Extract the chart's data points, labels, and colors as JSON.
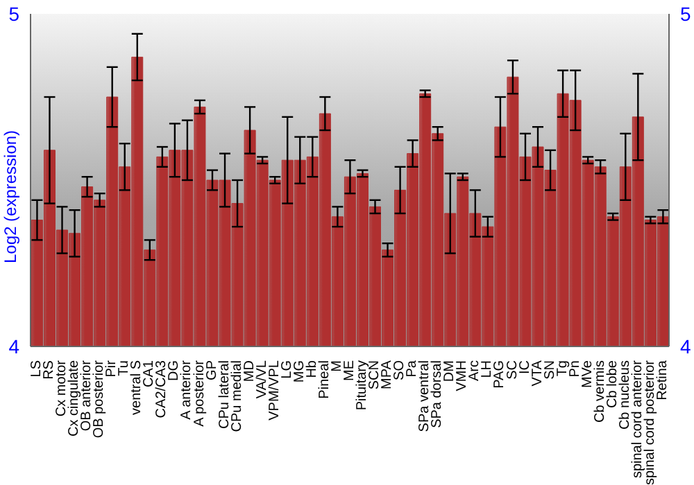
{
  "chart_data": {
    "type": "bar",
    "ylabel": "Log2 (expression)",
    "categories": [
      "LS",
      "RS",
      "Cx motor",
      "Cx cingulate",
      "OB anterior",
      "OB posterior",
      "Pir",
      "Tu",
      "ventral S",
      "CA1",
      "CA2/CA3",
      "DG",
      "A anterior",
      "A posterior",
      "GP",
      "CPu lateral",
      "CPu medial",
      "MD",
      "VA/VL",
      "VPM/VPL",
      "LG",
      "MG",
      "Hb",
      "Pineal",
      "M",
      "ME",
      "Pituitary",
      "SCN",
      "MPA",
      "SO",
      "Pa",
      "SPa ventral",
      "SPa dorsal",
      "DM",
      "VMH",
      "Arc",
      "LH",
      "PAG",
      "SC",
      "IC",
      "VTA",
      "SN",
      "Tg",
      "Pn",
      "MVe",
      "Cb vermis",
      "Cb lobe",
      "Cb nucleus",
      "spinal cord anterior",
      "spinal cord posterior",
      "Retina"
    ],
    "series": [
      {
        "color": "#b03030",
        "values": [
          4.38,
          4.59,
          4.35,
          4.34,
          4.48,
          4.44,
          4.75,
          4.54,
          4.87,
          4.29,
          4.57,
          4.59,
          4.59,
          4.72,
          4.5,
          4.5,
          4.43,
          4.65,
          4.56,
          4.5,
          4.56,
          4.56,
          4.57,
          4.7,
          4.39,
          4.51,
          4.52,
          4.42,
          4.29,
          4.47,
          4.58,
          4.76,
          4.64,
          4.4,
          4.51,
          4.4,
          4.36,
          4.66,
          4.81,
          4.57,
          4.6,
          4.53,
          4.76,
          4.74,
          4.56,
          4.54,
          4.39,
          4.54,
          4.69,
          4.38,
          4.39
        ],
        "errors": [
          0.06,
          0.16,
          0.07,
          0.07,
          0.03,
          0.02,
          0.09,
          0.07,
          0.07,
          0.03,
          0.03,
          0.08,
          0.09,
          0.02,
          0.03,
          0.08,
          0.07,
          0.07,
          0.01,
          0.01,
          0.13,
          0.07,
          0.06,
          0.05,
          0.03,
          0.05,
          0.01,
          0.02,
          0.02,
          0.07,
          0.04,
          0.01,
          0.02,
          0.12,
          0.01,
          0.07,
          0.03,
          0.09,
          0.05,
          0.07,
          0.06,
          0.06,
          0.07,
          0.09,
          0.01,
          0.02,
          0.01,
          0.1,
          0.13,
          0.01,
          0.02
        ]
      }
    ],
    "ylim": [
      4,
      5
    ],
    "yticks": [
      4,
      5
    ],
    "y2lim": [
      4,
      5
    ],
    "y2ticks": [
      4,
      5
    ],
    "grid": false,
    "legend": false
  }
}
